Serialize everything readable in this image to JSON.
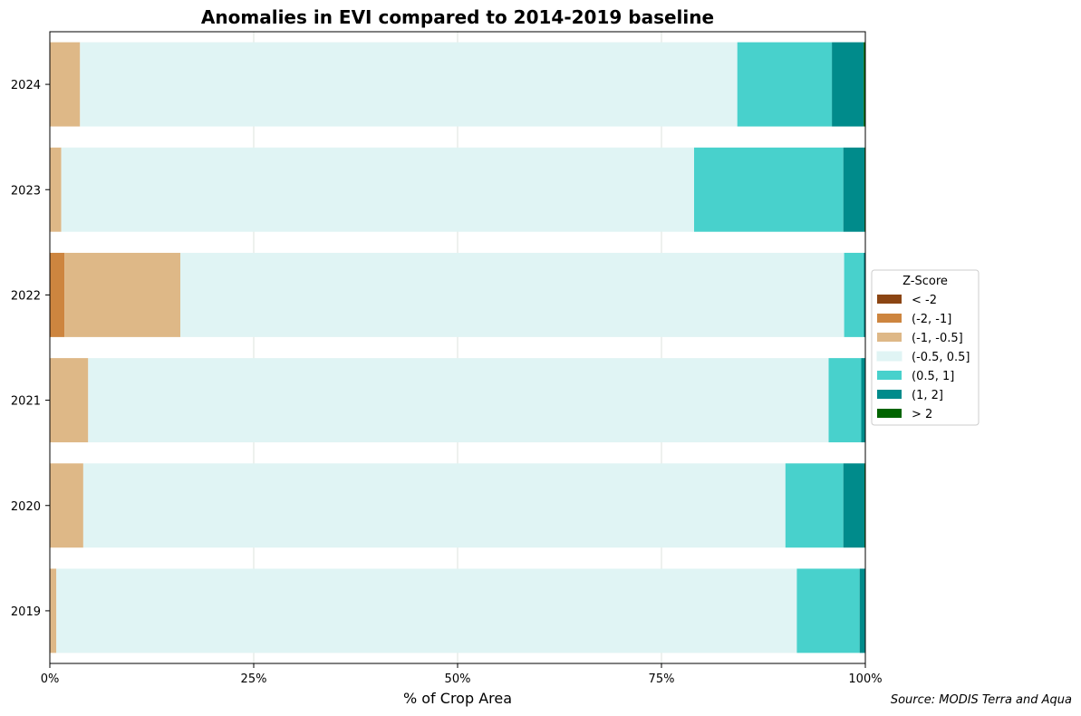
{
  "chart_data": {
    "type": "bar",
    "orientation": "horizontal",
    "stacked": true,
    "title": "Anomalies in EVI compared to 2014-2019 baseline",
    "xlabel": "% of Crop Area",
    "ylabel": "",
    "xlim": [
      0,
      100
    ],
    "x_ticks": [
      0,
      25,
      50,
      75,
      100
    ],
    "x_tick_labels": [
      "0%",
      "25%",
      "50%",
      "75%",
      "100%"
    ],
    "grid": "vertical",
    "legend_title": "Z-Score",
    "legend_placement": "right",
    "source": "Source: MODIS Terra and Aqua",
    "categories": [
      "2019",
      "2020",
      "2021",
      "2022",
      "2023",
      "2024"
    ],
    "series": [
      {
        "name": "< -2",
        "color": "#8B4513",
        "values": [
          0.0,
          0.0,
          0.0,
          0.0,
          0.0,
          0.0
        ]
      },
      {
        "name": "(-2, -1]",
        "color": "#CD853F",
        "values": [
          0.0,
          0.0,
          0.0,
          1.8,
          0.0,
          0.0
        ]
      },
      {
        "name": "(-1, -0.5]",
        "color": "#DEB887",
        "values": [
          0.8,
          4.1,
          4.7,
          14.2,
          1.4,
          3.7
        ]
      },
      {
        "name": "(-0.5, 0.5]",
        "color": "#E0F4F4",
        "values": [
          90.8,
          86.1,
          90.8,
          81.4,
          77.6,
          80.6
        ]
      },
      {
        "name": "(0.5, 1]",
        "color": "#48D1CC",
        "values": [
          7.7,
          7.1,
          4.0,
          2.4,
          18.3,
          11.6
        ]
      },
      {
        "name": "(1, 2]",
        "color": "#008B8B",
        "values": [
          0.7,
          2.6,
          0.5,
          0.2,
          2.6,
          3.9
        ]
      },
      {
        "name": "> 2",
        "color": "#006400",
        "values": [
          0.0,
          0.1,
          0.0,
          0.0,
          0.1,
          0.2
        ]
      }
    ]
  }
}
